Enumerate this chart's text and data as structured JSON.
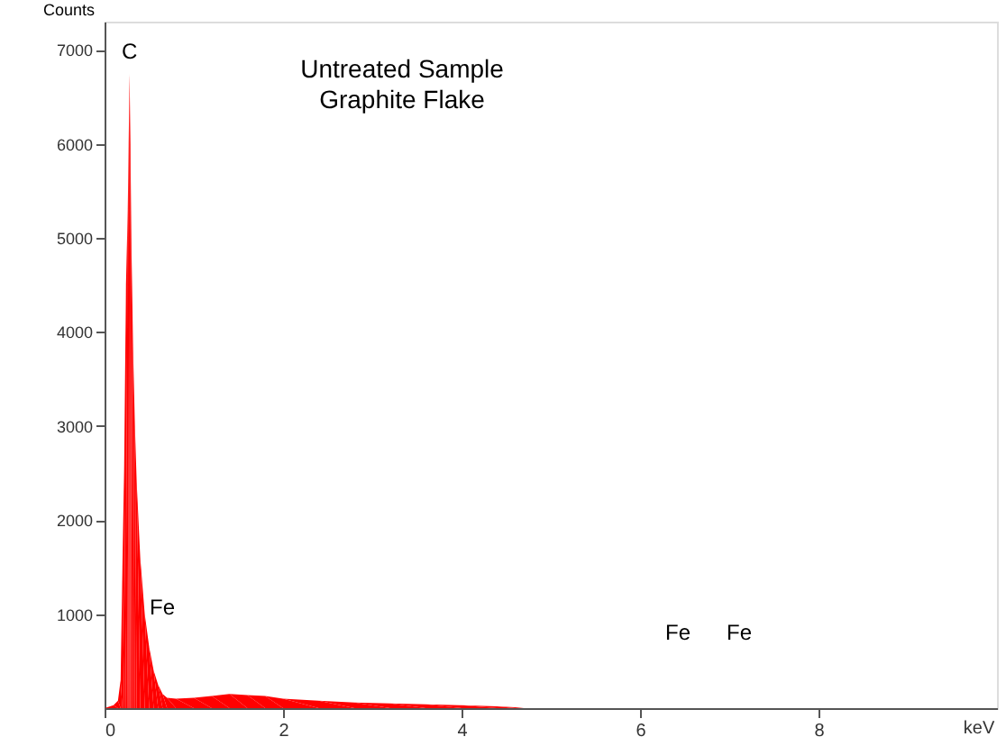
{
  "chart_data": {
    "type": "area",
    "title": "Untreated Sample\nGraphite Flake",
    "xlabel": "keV",
    "ylabel": "Counts",
    "x": [
      0.0,
      0.1,
      0.15,
      0.18,
      0.2,
      0.22,
      0.24,
      0.26,
      0.27,
      0.28,
      0.29,
      0.3,
      0.32,
      0.34,
      0.36,
      0.4,
      0.45,
      0.5,
      0.55,
      0.6,
      0.65,
      0.7,
      0.8,
      1.0,
      1.2,
      1.4,
      1.6,
      1.8,
      2.0,
      2.4,
      2.8,
      3.2,
      3.6,
      4.0,
      4.4,
      4.6,
      4.7,
      10.0
    ],
    "series": [
      {
        "color": "#ff0000",
        "values": [
          0,
          30,
          80,
          300,
          1500,
          2600,
          4500,
          5300,
          6000,
          6750,
          6000,
          5000,
          3800,
          3000,
          2400,
          1600,
          1000,
          650,
          400,
          250,
          150,
          110,
          100,
          110,
          130,
          150,
          140,
          130,
          100,
          80,
          60,
          50,
          40,
          30,
          20,
          10,
          0,
          0
        ]
      }
    ],
    "xlim": [
      0,
      10
    ],
    "xticks": [
      0,
      2,
      4,
      6,
      8
    ],
    "ylim": [
      0,
      7300
    ],
    "yticks": [
      1000,
      2000,
      3000,
      4000,
      5000,
      6000,
      7000
    ],
    "grid": false,
    "annotations": [
      {
        "text": "C",
        "x": 0.28,
        "y": 6850
      },
      "Fe",
      "Fe",
      "Fe"
    ]
  }
}
